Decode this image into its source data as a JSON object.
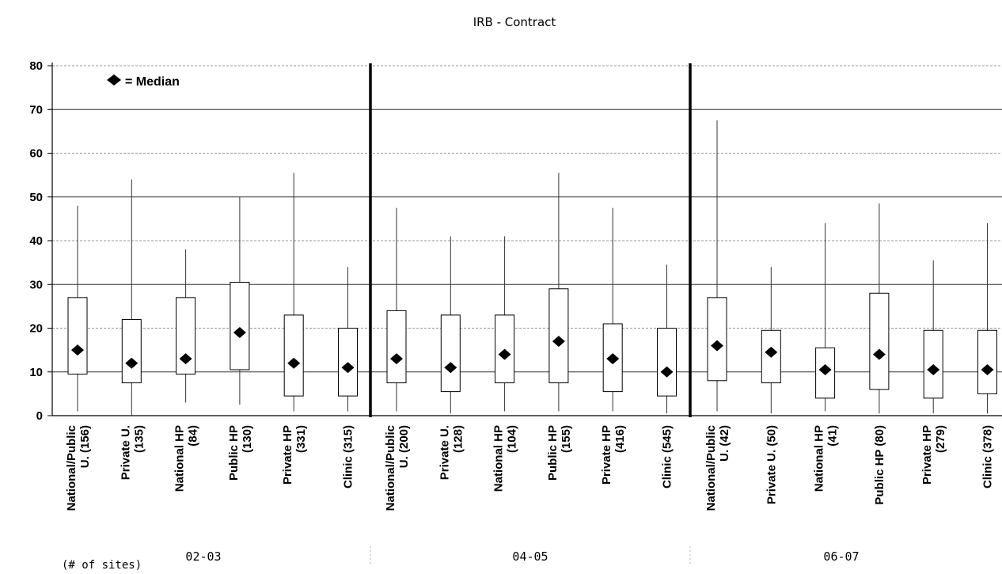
{
  "chart_data": {
    "type": "box",
    "title": "IRB - Contract",
    "ylim": [
      0,
      80
    ],
    "yticks": [
      0,
      10,
      20,
      30,
      40,
      50,
      60,
      70,
      80
    ],
    "grid": true,
    "legend": {
      "marker": "diamond",
      "label": "= Median",
      "position": "top-left"
    },
    "footer_label": "(# of sites)",
    "groups": [
      {
        "period": "02-03",
        "boxes": [
          {
            "label_lines": [
              "National/Public",
              "U. (156)"
            ],
            "whisker_low": 1,
            "q1": 9.5,
            "median": 15,
            "q3": 27,
            "whisker_high": 48
          },
          {
            "label_lines": [
              "Private U.",
              "(135)"
            ],
            "whisker_low": 0,
            "q1": 7.5,
            "median": 12,
            "q3": 22,
            "whisker_high": 54
          },
          {
            "label_lines": [
              "National HP",
              "(84)"
            ],
            "whisker_low": 3,
            "q1": 9.5,
            "median": 13,
            "q3": 27,
            "whisker_high": 38
          },
          {
            "label_lines": [
              "Public HP",
              "(130)"
            ],
            "whisker_low": 2.5,
            "q1": 10.5,
            "median": 19,
            "q3": 30.5,
            "whisker_high": 50
          },
          {
            "label_lines": [
              "Private HP",
              "(331)"
            ],
            "whisker_low": 1,
            "q1": 4.5,
            "median": 12,
            "q3": 23,
            "whisker_high": 55.5
          },
          {
            "label_lines": [
              "Clinic (315)"
            ],
            "whisker_low": 1,
            "q1": 4.5,
            "median": 11,
            "q3": 20,
            "whisker_high": 34
          }
        ]
      },
      {
        "period": "04-05",
        "boxes": [
          {
            "label_lines": [
              "National/Public",
              "U. (200)"
            ],
            "whisker_low": 1,
            "q1": 7.5,
            "median": 13,
            "q3": 24,
            "whisker_high": 47.5
          },
          {
            "label_lines": [
              "Private U.",
              "(128)"
            ],
            "whisker_low": 0.5,
            "q1": 5.5,
            "median": 11,
            "q3": 23,
            "whisker_high": 41
          },
          {
            "label_lines": [
              "National HP",
              "(104)"
            ],
            "whisker_low": 1,
            "q1": 7.5,
            "median": 14,
            "q3": 23,
            "whisker_high": 41
          },
          {
            "label_lines": [
              "Public HP",
              "(155)"
            ],
            "whisker_low": 1,
            "q1": 7.5,
            "median": 17,
            "q3": 29,
            "whisker_high": 55.5
          },
          {
            "label_lines": [
              "Private HP",
              "(416)"
            ],
            "whisker_low": 1,
            "q1": 5.5,
            "median": 13,
            "q3": 21,
            "whisker_high": 47.5
          },
          {
            "label_lines": [
              "Clinic (545)"
            ],
            "whisker_low": 0.5,
            "q1": 4.5,
            "median": 10,
            "q3": 20,
            "whisker_high": 34.5
          }
        ]
      },
      {
        "period": "06-07",
        "boxes": [
          {
            "label_lines": [
              "National/Public",
              "U. (42)"
            ],
            "whisker_low": 1,
            "q1": 8,
            "median": 16,
            "q3": 27,
            "whisker_high": 67.5
          },
          {
            "label_lines": [
              "Private U. (50)"
            ],
            "whisker_low": 0.5,
            "q1": 7.5,
            "median": 14.5,
            "q3": 19.5,
            "whisker_high": 34
          },
          {
            "label_lines": [
              "National HP",
              "(41)"
            ],
            "whisker_low": 1,
            "q1": 4,
            "median": 10.5,
            "q3": 15.5,
            "whisker_high": 44
          },
          {
            "label_lines": [
              "Public HP (80)"
            ],
            "whisker_low": 0.5,
            "q1": 6,
            "median": 14,
            "q3": 28,
            "whisker_high": 48.5
          },
          {
            "label_lines": [
              "Private HP",
              "(279)"
            ],
            "whisker_low": 0.5,
            "q1": 4,
            "median": 10.5,
            "q3": 19.5,
            "whisker_high": 35.5
          },
          {
            "label_lines": [
              "Clinic (378)"
            ],
            "whisker_low": 0.5,
            "q1": 5,
            "median": 10.5,
            "q3": 19.5,
            "whisker_high": 44
          }
        ]
      }
    ]
  }
}
